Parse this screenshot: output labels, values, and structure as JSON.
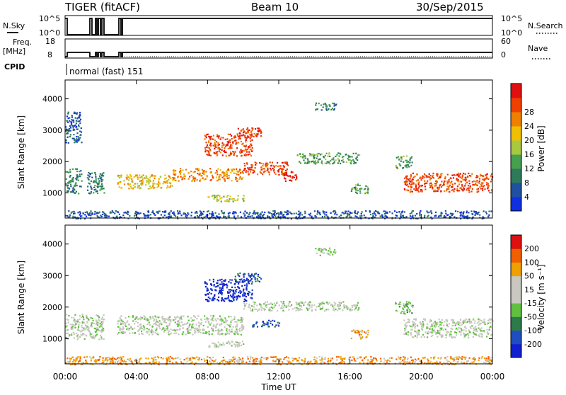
{
  "header": {
    "station": "TIGER (fitACF)",
    "beam": "Beam 10",
    "date": "30/Sep/2015"
  },
  "top_panels": {
    "nsky_label": "N.Sky",
    "nsky_ticks": [
      "10^5",
      "10^0"
    ],
    "nsearch_label": "N.Search",
    "nsearch_ticks": [
      "10^5",
      "10^0"
    ],
    "freq_label": "Freq.",
    "freq_unit": "[MHz]",
    "freq_ticks": [
      "18",
      "8"
    ],
    "nave_label": "Nave",
    "nave_ticks": [
      "60",
      "0"
    ],
    "cpid_label": "CPID",
    "cpid_text": "normal (fast) 151"
  },
  "colors": {
    "power": [
      "#1030e0",
      "#2050a0",
      "#2e7a5a",
      "#46a050",
      "#a8c840",
      "#f0c000",
      "#f08000",
      "#f04000",
      "#e01010"
    ],
    "velocity": [
      "#1020d0",
      "#1e4ec0",
      "#2d7a4a",
      "#60c040",
      "#c8c8c0",
      "#c8c8c0",
      "#f0a000",
      "#f06000",
      "#e01010"
    ]
  },
  "chart_data": [
    {
      "type": "heatmap",
      "name": "power",
      "ylabel": "Slant Range [km]",
      "yticks": [
        1000,
        2000,
        3000,
        4000
      ],
      "ylim": [
        200,
        4600
      ],
      "xlim": [
        0,
        24
      ],
      "colorbar_label": "Power [dB]",
      "colorbar_ticks": [
        "4",
        "8",
        "12",
        "16",
        "20",
        "24",
        "28"
      ],
      "regions": [
        {
          "t0": 0.0,
          "t1": 0.9,
          "r0": 1000,
          "r1": 1800,
          "level": 2
        },
        {
          "t0": 1.2,
          "t1": 2.2,
          "r0": 1000,
          "r1": 1700,
          "level": 2
        },
        {
          "t0": 0.0,
          "t1": 0.9,
          "r0": 2600,
          "r1": 3600,
          "level": 1
        },
        {
          "t0": 2.9,
          "t1": 6.0,
          "r0": 1150,
          "r1": 1600,
          "level": 5
        },
        {
          "t0": 6.0,
          "t1": 10.0,
          "r0": 1400,
          "r1": 1800,
          "level": 6
        },
        {
          "t0": 7.8,
          "t1": 10.5,
          "r0": 2200,
          "r1": 2900,
          "level": 7
        },
        {
          "t0": 9.5,
          "t1": 11.0,
          "r0": 2800,
          "r1": 3100,
          "level": 7
        },
        {
          "t0": 10.0,
          "t1": 12.5,
          "r0": 1600,
          "r1": 2000,
          "level": 7
        },
        {
          "t0": 12.2,
          "t1": 13.0,
          "r0": 1400,
          "r1": 1700,
          "level": 8
        },
        {
          "t0": 13.0,
          "t1": 16.5,
          "r0": 1950,
          "r1": 2300,
          "level": 3
        },
        {
          "t0": 8.0,
          "t1": 10.0,
          "r0": 750,
          "r1": 950,
          "level": 4
        },
        {
          "t0": 14.0,
          "t1": 15.2,
          "r0": 3650,
          "r1": 3900,
          "level": 2
        },
        {
          "t0": 19.0,
          "t1": 24.0,
          "r0": 1050,
          "r1": 1650,
          "level": 7
        },
        {
          "t0": 18.5,
          "t1": 19.5,
          "r0": 1800,
          "r1": 2200,
          "level": 3
        },
        {
          "t0": 16.0,
          "t1": 17.0,
          "r0": 1000,
          "r1": 1300,
          "level": 3
        },
        {
          "t0": 0.0,
          "t1": 24.0,
          "r0": 200,
          "r1": 450,
          "level": 1
        }
      ]
    },
    {
      "type": "heatmap",
      "name": "velocity",
      "ylabel": "Slant Range [km]",
      "yticks": [
        1000,
        2000,
        3000,
        4000
      ],
      "ylim": [
        200,
        4600
      ],
      "xlim": [
        0,
        24
      ],
      "xlabel": "Time UT",
      "xticks": [
        "00:00",
        "04:00",
        "08:00",
        "12:00",
        "16:00",
        "20:00",
        "00:00"
      ],
      "colorbar_label": "Velocity [m s⁻¹]",
      "colorbar_ticks": [
        "200",
        "100",
        "50",
        "15",
        "-15",
        "-50",
        "-100",
        "-200"
      ],
      "regions": [
        {
          "t0": 0.0,
          "t1": 2.2,
          "r0": 1000,
          "r1": 1800,
          "level": 4
        },
        {
          "t0": 2.9,
          "t1": 10.0,
          "r0": 1150,
          "r1": 1750,
          "level": 4
        },
        {
          "t0": 7.8,
          "t1": 10.5,
          "r0": 2200,
          "r1": 2900,
          "level": 0
        },
        {
          "t0": 9.5,
          "t1": 11.0,
          "r0": 2800,
          "r1": 3100,
          "level": 1
        },
        {
          "t0": 10.0,
          "t1": 16.5,
          "r0": 1900,
          "r1": 2200,
          "level": 4
        },
        {
          "t0": 10.5,
          "t1": 12.0,
          "r0": 1400,
          "r1": 1600,
          "level": 1
        },
        {
          "t0": 8.0,
          "t1": 10.0,
          "r0": 750,
          "r1": 950,
          "level": 4
        },
        {
          "t0": 14.0,
          "t1": 15.2,
          "r0": 3650,
          "r1": 3900,
          "level": 4
        },
        {
          "t0": 19.0,
          "t1": 24.0,
          "r0": 1050,
          "r1": 1650,
          "level": 4
        },
        {
          "t0": 18.5,
          "t1": 19.5,
          "r0": 1800,
          "r1": 2200,
          "level": 3
        },
        {
          "t0": 16.0,
          "t1": 17.0,
          "r0": 1000,
          "r1": 1300,
          "level": 6
        },
        {
          "t0": 0.0,
          "t1": 24.0,
          "r0": 200,
          "r1": 450,
          "level": 6
        }
      ]
    }
  ]
}
